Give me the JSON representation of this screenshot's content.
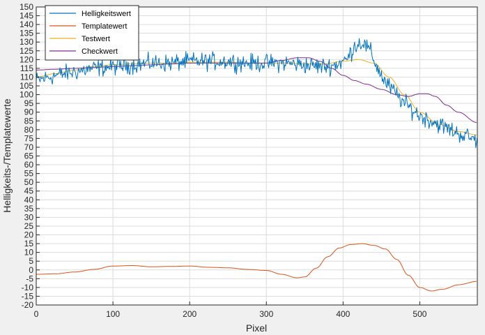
{
  "chart_data": {
    "type": "line",
    "title": "",
    "xlabel": "Pixel",
    "ylabel": "Helligkeits-/Templatewerte",
    "xlim": [
      0,
      575
    ],
    "ylim": [
      -20,
      150
    ],
    "xticks": [
      0,
      100,
      200,
      300,
      400,
      500
    ],
    "yticks": [
      -20,
      -15,
      -10,
      -5,
      0,
      5,
      10,
      15,
      20,
      25,
      30,
      35,
      40,
      45,
      50,
      55,
      60,
      65,
      70,
      75,
      80,
      85,
      90,
      95,
      100,
      105,
      110,
      115,
      120,
      125,
      130,
      135,
      140,
      145,
      150
    ],
    "grid": true,
    "legend_position": "top-left",
    "series": [
      {
        "name": "Helligkeitswert",
        "color": "#0072BD",
        "noisy": true,
        "noise_amplitude": 3.5,
        "x": [
          0,
          25,
          50,
          75,
          100,
          125,
          150,
          175,
          200,
          225,
          250,
          275,
          300,
          325,
          350,
          375,
          390,
          405,
          415,
          425,
          435,
          445,
          455,
          470,
          480,
          500,
          525,
          550,
          575
        ],
        "y": [
          108,
          111,
          113,
          115,
          116,
          117,
          118,
          118,
          119,
          119,
          119,
          118,
          118,
          118,
          117,
          116,
          117,
          120,
          128,
          130,
          125,
          115,
          107,
          100,
          95,
          88,
          83,
          78,
          74
        ]
      },
      {
        "name": "Templatewert",
        "color": "#D95319",
        "noisy": false,
        "x": [
          0,
          25,
          50,
          75,
          100,
          125,
          150,
          175,
          200,
          225,
          250,
          275,
          300,
          320,
          340,
          350,
          365,
          380,
          395,
          410,
          425,
          440,
          455,
          470,
          485,
          500,
          515,
          530,
          550,
          575
        ],
        "y": [
          -2.5,
          -2.2,
          -1.2,
          0.3,
          2.2,
          2.5,
          1.8,
          2.0,
          2.2,
          1.5,
          1.2,
          0.3,
          -0.3,
          -2.5,
          -4.5,
          -4.0,
          1.0,
          7.5,
          12.5,
          14.5,
          15.0,
          14.0,
          12.0,
          6.0,
          -3.0,
          -10.0,
          -12.0,
          -11.0,
          -8.5,
          -6.5
        ]
      },
      {
        "name": "Testwert",
        "color": "#EDB120",
        "noisy": false,
        "x": [
          0,
          25,
          50,
          75,
          100,
          125,
          150,
          175,
          200,
          225,
          250,
          275,
          300,
          325,
          350,
          375,
          400,
          420,
          440,
          460,
          480,
          500,
          525,
          550,
          575
        ],
        "y": [
          110,
          112,
          114,
          116,
          117,
          117.5,
          118,
          118,
          118.5,
          118.5,
          118.5,
          118,
          118,
          118,
          117.5,
          117.5,
          119,
          120,
          118,
          110,
          100,
          90,
          83,
          79,
          77
        ]
      },
      {
        "name": "Checkwert",
        "color": "#7E2F8E",
        "noisy": false,
        "x": [
          0,
          25,
          50,
          75,
          100,
          125,
          150,
          175,
          200,
          225,
          250,
          275,
          300,
          320,
          340,
          355,
          370,
          385,
          400,
          415,
          430,
          450,
          470,
          485,
          500,
          510,
          520,
          535,
          550,
          575
        ],
        "y": [
          114,
          114.5,
          115,
          115.5,
          116,
          116.5,
          117,
          117.5,
          118,
          118,
          118,
          118,
          118,
          119.5,
          121,
          121,
          119,
          115,
          111,
          108,
          106,
          103,
          100,
          99,
          100.5,
          100.5,
          99,
          94,
          90,
          84
        ]
      }
    ]
  }
}
